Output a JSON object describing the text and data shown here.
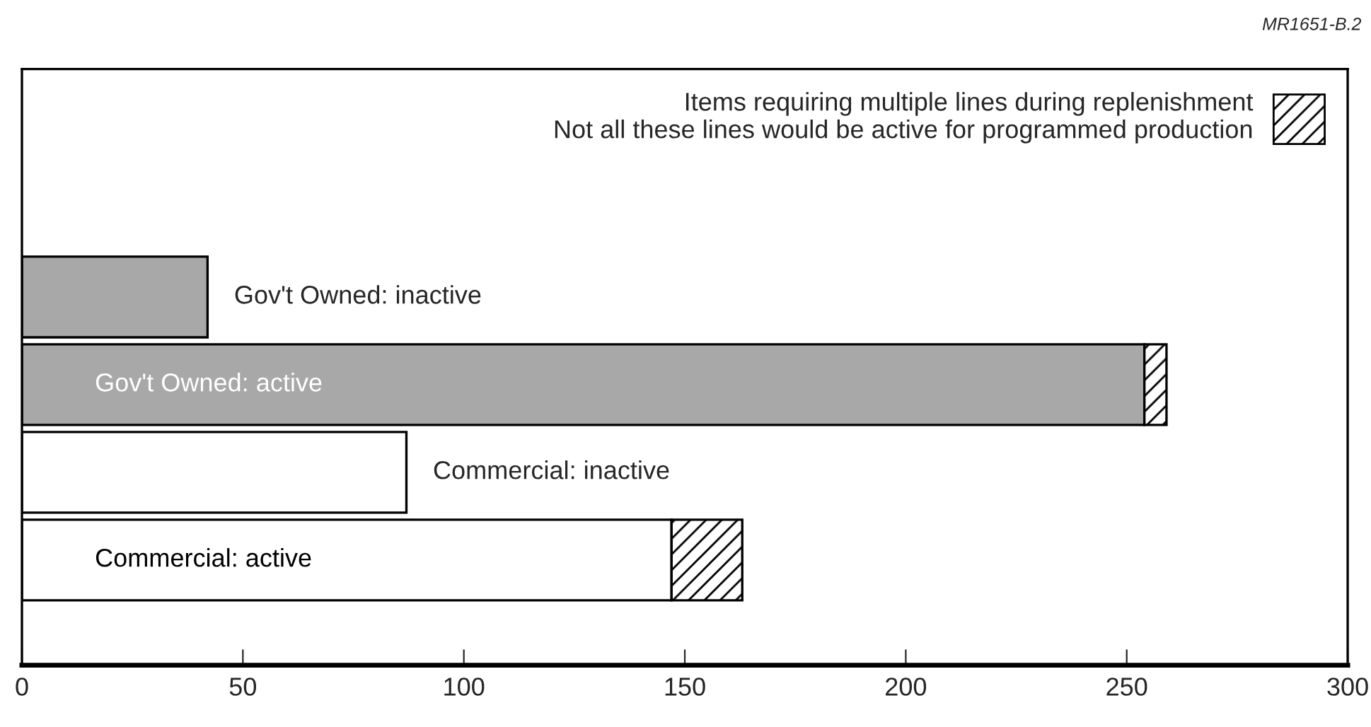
{
  "chart_data": {
    "type": "bar",
    "orientation": "horizontal",
    "stacked": true,
    "categories": [
      "Gov't Owned: inactive",
      "Gov't Owned: active",
      "Commercial: inactive",
      "Commercial: active"
    ],
    "series": [
      {
        "colors": [
          "#a8a8a8",
          "#a8a8a8",
          "#ffffff",
          "#ffffff"
        ],
        "values": [
          42,
          254,
          87,
          147
        ]
      },
      {
        "name": "Items requiring multiple lines during replenishment\nNot all these lines would be active for programmed production",
        "color": "#000000",
        "values": [
          null,
          5,
          null,
          16
        ]
      }
    ],
    "xlim": [
      0,
      300
    ],
    "xticks": [
      0,
      50,
      100,
      150,
      200,
      250,
      300
    ],
    "legend": "top right",
    "grid": false,
    "annotations": [
      "MR1651-B.2"
    ]
  }
}
